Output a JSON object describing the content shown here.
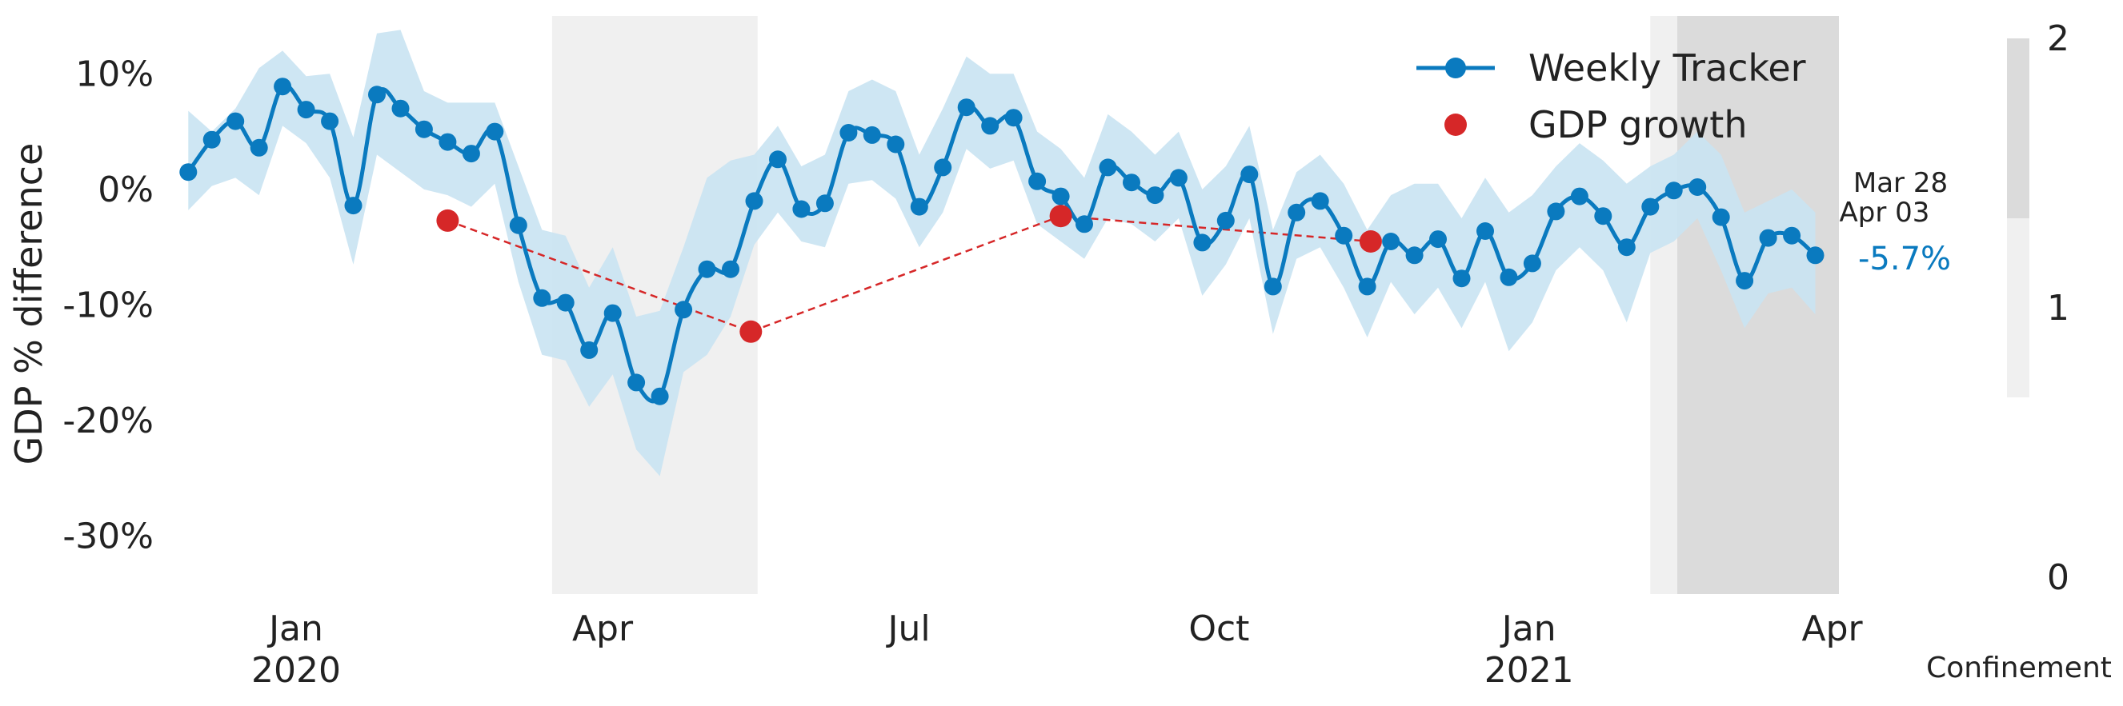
{
  "chart_data": {
    "type": "line",
    "title": "",
    "ylabel": "GDP % difference",
    "ylim": [
      -35,
      15
    ],
    "xlim": [
      "2019-11-24",
      "2021-04-03"
    ],
    "y_ticks": [
      10,
      0,
      -10,
      -20,
      -30
    ],
    "y_tick_labels": [
      "10%",
      "0%",
      "-10%",
      "-20%",
      "-30%"
    ],
    "x_ticks": [
      {
        "date": "2020-01-01",
        "label": "Jan",
        "year": "2020"
      },
      {
        "date": "2020-04-01",
        "label": "Apr",
        "year": ""
      },
      {
        "date": "2020-07-01",
        "label": "Jul",
        "year": ""
      },
      {
        "date": "2020-10-01",
        "label": "Oct",
        "year": ""
      },
      {
        "date": "2021-01-01",
        "label": "Jan",
        "year": "2021"
      },
      {
        "date": "2021-04-01",
        "label": "Apr",
        "year": ""
      }
    ],
    "grid": false,
    "legend_position": "top-right",
    "colors": {
      "tracker": "#0a7abf",
      "band": "#c9e3f2",
      "gdp": "#d62728",
      "confinement_light": "#f0f0f0",
      "confinement_dark": "#dbdbdb",
      "last_label": "#0a7abf"
    },
    "series": [
      {
        "name": "Weekly Tracker",
        "start_date": "2019-11-30",
        "step_days": 7,
        "values": [
          1.5,
          4.3,
          5.9,
          3.6,
          8.9,
          6.9,
          5.9,
          -1.4,
          8.2,
          7.0,
          5.2,
          4.1,
          3.1,
          5.0,
          -3.1,
          -9.4,
          -9.8,
          -13.9,
          -10.7,
          -16.7,
          -17.9,
          -10.4,
          -6.9,
          -6.9,
          -1.0,
          2.6,
          -1.7,
          -1.2,
          4.9,
          4.7,
          3.9,
          -1.5,
          1.9,
          7.1,
          5.5,
          6.2,
          0.7,
          -0.6,
          -3.0,
          1.9,
          0.6,
          -0.5,
          1.0,
          -4.6,
          -2.7,
          1.3,
          -8.4,
          -2.0,
          -1.0,
          -4.0,
          -8.4,
          -4.5,
          -5.7,
          -4.3,
          -7.7,
          -3.6,
          -7.6,
          -6.4,
          -1.9,
          -0.6,
          -2.3,
          -5.0,
          -1.5,
          -0.1,
          0.2,
          -2.4,
          -7.9,
          -4.2,
          -4.0,
          -5.7
        ],
        "band_lower": [
          -1.8,
          0.3,
          1.0,
          -0.5,
          5.5,
          4.0,
          1.0,
          -6.5,
          3.0,
          1.5,
          0.0,
          -0.5,
          -1.5,
          0.5,
          -8.0,
          -14.3,
          -14.8,
          -18.8,
          -16.0,
          -22.5,
          -24.8,
          -15.8,
          -14.3,
          -11.0,
          -4.8,
          -2.0,
          -4.5,
          -5.0,
          0.5,
          0.8,
          -0.8,
          -5.0,
          -2.0,
          3.5,
          1.8,
          2.5,
          -3.0,
          -4.5,
          -6.0,
          -2.5,
          -3.0,
          -4.5,
          -2.5,
          -9.2,
          -6.5,
          -2.5,
          -12.5,
          -6.0,
          -5.0,
          -8.5,
          -12.8,
          -8.0,
          -10.8,
          -8.5,
          -12.0,
          -8.0,
          -14.0,
          -11.5,
          -7.0,
          -5.0,
          -7.0,
          -11.5,
          -5.5,
          -4.5,
          -2.5,
          -7.0,
          -12.0,
          -9.0,
          -8.5,
          -10.8
        ],
        "band_upper": [
          6.8,
          5.0,
          7.0,
          10.5,
          12.0,
          9.8,
          10.0,
          4.5,
          13.5,
          13.8,
          8.5,
          7.5,
          7.5,
          7.5,
          2.0,
          -3.5,
          -4.0,
          -8.5,
          -5.0,
          -11.0,
          -10.5,
          -5.0,
          1.0,
          2.5,
          3.0,
          5.5,
          2.0,
          3.0,
          8.5,
          9.5,
          8.5,
          3.0,
          7.0,
          11.5,
          10.0,
          10.0,
          5.0,
          3.5,
          1.0,
          6.5,
          5.0,
          3.0,
          5.0,
          0.0,
          2.0,
          5.5,
          -3.5,
          1.5,
          3.0,
          0.5,
          -3.5,
          -0.5,
          0.5,
          0.5,
          -2.5,
          1.0,
          -2.0,
          -0.5,
          2.0,
          4.0,
          2.5,
          0.5,
          2.0,
          3.0,
          5.0,
          3.0,
          -2.0,
          -1.0,
          0.0,
          -2.0
        ]
      },
      {
        "name": "GDP growth",
        "points": [
          {
            "date": "2020-02-15",
            "value": -2.7
          },
          {
            "date": "2020-05-15",
            "value": -12.3
          },
          {
            "date": "2020-08-15",
            "value": -2.3
          },
          {
            "date": "2020-11-15",
            "value": -4.5
          }
        ]
      }
    ],
    "confinement": {
      "label": "Confinement",
      "ticks": [
        2,
        1,
        0
      ],
      "periods": [
        {
          "start": "2020-03-17",
          "end": "2020-05-17",
          "level": 1
        },
        {
          "start": "2021-02-06",
          "end": "2021-02-14",
          "level": 1
        },
        {
          "start": "2021-02-14",
          "end": "2021-04-03",
          "level": 2
        }
      ]
    },
    "annotations": {
      "date_top": "Mar 28",
      "date_bottom": "Apr 03",
      "last_value": "-5.7%"
    }
  }
}
